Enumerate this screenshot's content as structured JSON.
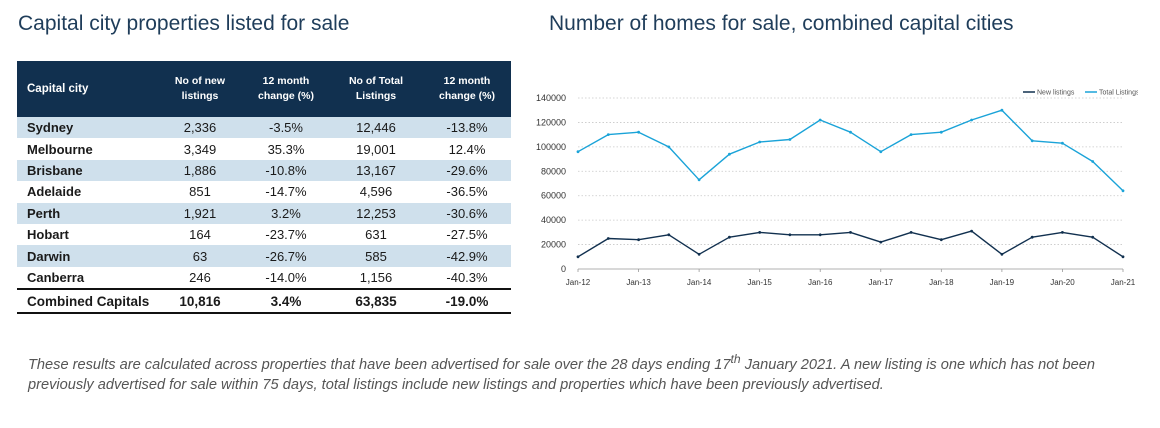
{
  "left_title": "Capital city properties listed for sale",
  "right_title": "Number of homes for sale, combined capital cities",
  "table": {
    "headers": [
      "Capital city",
      "No of new listings",
      "12 month change (%)",
      "No of Total Listings",
      "12 month change (%)"
    ],
    "rows": [
      [
        "Sydney",
        "2,336",
        "-3.5%",
        "12,446",
        "-13.8%"
      ],
      [
        "Melbourne",
        "3,349",
        "35.3%",
        "19,001",
        "12.4%"
      ],
      [
        "Brisbane",
        "1,886",
        "-10.8%",
        "13,167",
        "-29.6%"
      ],
      [
        "Adelaide",
        "851",
        "-14.7%",
        "4,596",
        "-36.5%"
      ],
      [
        "Perth",
        "1,921",
        "3.2%",
        "12,253",
        "-30.6%"
      ],
      [
        "Hobart",
        "164",
        "-23.7%",
        "631",
        "-27.5%"
      ],
      [
        "Darwin",
        "63",
        "-26.7%",
        "585",
        "-42.9%"
      ],
      [
        "Canberra",
        "246",
        "-14.0%",
        "1,156",
        "-40.3%"
      ]
    ],
    "total": [
      "Combined Capitals",
      "10,816",
      "3.4%",
      "63,835",
      "-19.0%"
    ]
  },
  "chart_data": {
    "type": "line",
    "x": [
      "Jan-12",
      "Jul-12",
      "Jan-13",
      "Jul-13",
      "Jan-14",
      "Jul-14",
      "Jan-15",
      "Jul-15",
      "Jan-16",
      "Jul-16",
      "Jan-17",
      "Jul-17",
      "Jan-18",
      "Jul-18",
      "Jan-19",
      "Jul-19",
      "Jan-20",
      "Jul-20",
      "Jan-21"
    ],
    "x_tick_labels": [
      "Jan-12",
      "Jan-13",
      "Jan-14",
      "Jan-15",
      "Jan-16",
      "Jan-17",
      "Jan-18",
      "Jan-19",
      "Jan-20",
      "Jan-21"
    ],
    "y_tick_labels": [
      "0",
      "20000",
      "40000",
      "60000",
      "80000",
      "100000",
      "120000",
      "140000"
    ],
    "ylim": [
      0,
      140000
    ],
    "grid": true,
    "legend": "top-right",
    "series": [
      {
        "name": "New listings",
        "color": "#11304f",
        "values": [
          10000,
          25000,
          24000,
          28000,
          12000,
          26000,
          30000,
          28000,
          28000,
          30000,
          22000,
          30000,
          24000,
          31000,
          12000,
          26000,
          30000,
          26000,
          10000
        ]
      },
      {
        "name": "Total Listings",
        "color": "#1aa3d8",
        "values": [
          96000,
          110000,
          112000,
          100000,
          73000,
          94000,
          104000,
          106000,
          122000,
          112000,
          96000,
          110000,
          112000,
          122000,
          130000,
          105000,
          103000,
          88000,
          64000
        ]
      }
    ]
  },
  "footnote": {
    "before": "These results are calculated across properties that have been advertised for sale over the 28 days ending 17",
    "sup": "th",
    "after": " January 2021.  A new listing is one which has not been previously advertised for sale within 75 days, total listings include new listings and properties which have been previously advertised."
  }
}
